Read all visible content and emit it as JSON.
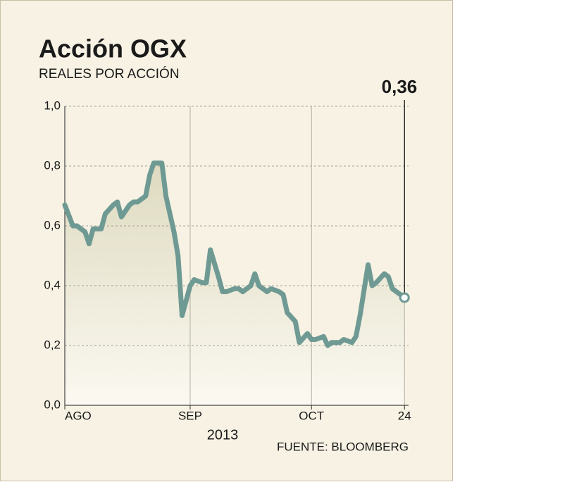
{
  "chart_data": {
    "type": "line",
    "title": "Acción OGX",
    "subtitle": "REALES POR ACCIÓN",
    "x_label": "2013",
    "source": "FUENTE: BLOOMBERG",
    "annotation": "0,36",
    "color": "#6f9a94",
    "grid": true,
    "xlim": [
      0,
      85
    ],
    "xticks": [
      {
        "value": 0,
        "label": "AGO"
      },
      {
        "value": 31,
        "label": "SEP"
      },
      {
        "value": 61,
        "label": "OCT"
      },
      {
        "value": 84,
        "label": "24"
      }
    ],
    "ylim": [
      0,
      1
    ],
    "yticks": [
      {
        "value": 0,
        "label": "0,0"
      },
      {
        "value": 0.2,
        "label": "0,2"
      },
      {
        "value": 0.4,
        "label": "0,4"
      },
      {
        "value": 0.6,
        "label": "0,6"
      },
      {
        "value": 0.8,
        "label": "0,8"
      },
      {
        "value": 1,
        "label": "1,0"
      }
    ],
    "x": [
      0,
      2,
      3,
      5,
      6,
      7,
      9,
      10,
      12,
      13,
      14,
      16,
      17,
      18,
      20,
      21,
      22,
      24,
      25,
      27,
      28,
      29,
      31,
      32,
      34,
      35,
      36,
      38,
      39,
      40,
      42,
      43,
      44,
      46,
      47,
      48,
      50,
      51,
      53,
      54,
      55,
      57,
      58,
      60,
      61,
      62,
      64,
      65,
      66,
      68,
      69,
      71,
      72,
      73,
      75,
      76,
      77,
      79,
      80,
      81,
      83,
      84
    ],
    "values": [
      0.67,
      0.6,
      0.6,
      0.58,
      0.54,
      0.59,
      0.59,
      0.64,
      0.67,
      0.68,
      0.63,
      0.67,
      0.68,
      0.68,
      0.7,
      0.77,
      0.81,
      0.81,
      0.7,
      0.58,
      0.5,
      0.3,
      0.4,
      0.42,
      0.41,
      0.41,
      0.52,
      0.43,
      0.38,
      0.38,
      0.39,
      0.39,
      0.38,
      0.4,
      0.44,
      0.4,
      0.38,
      0.39,
      0.38,
      0.37,
      0.31,
      0.28,
      0.21,
      0.24,
      0.22,
      0.22,
      0.23,
      0.2,
      0.21,
      0.21,
      0.22,
      0.21,
      0.23,
      0.3,
      0.47,
      0.4,
      0.41,
      0.44,
      0.43,
      0.39,
      0.37,
      0.36
    ]
  }
}
